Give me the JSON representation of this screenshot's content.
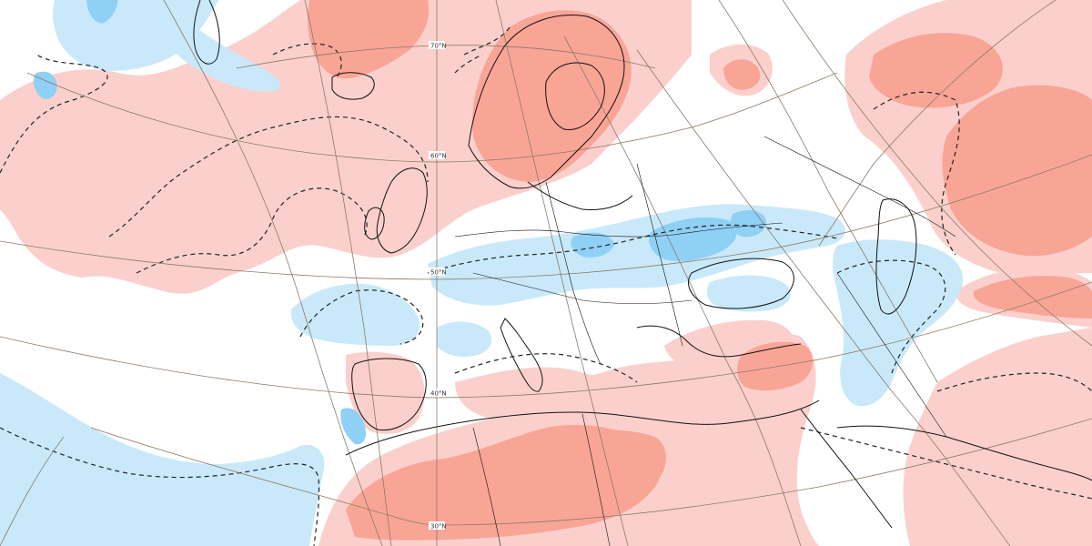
{
  "map": {
    "latitude_labels": [
      "70°N",
      "60°N",
      "50°N",
      "40°N",
      "30°N"
    ],
    "colors": {
      "warm_light": "#fbd0cc",
      "warm_strong": "#f9a596",
      "cold_light": "#c9e9fb",
      "cold_strong": "#8fd0f5",
      "graticule": "#8a7a66",
      "coastline": "#111111"
    },
    "legend_note": ""
  }
}
